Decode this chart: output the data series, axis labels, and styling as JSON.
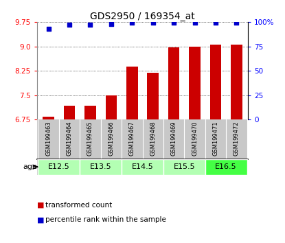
{
  "title": "GDS2950 / 169354_at",
  "samples": [
    "GSM199463",
    "GSM199464",
    "GSM199465",
    "GSM199466",
    "GSM199467",
    "GSM199468",
    "GSM199469",
    "GSM199470",
    "GSM199471",
    "GSM199472"
  ],
  "transformed_count": [
    6.85,
    7.18,
    7.19,
    7.5,
    8.37,
    8.2,
    8.97,
    9.0,
    9.06,
    9.06
  ],
  "percentile_rank": [
    93,
    97,
    97,
    98,
    99,
    99,
    99,
    99,
    99,
    99
  ],
  "age_groups": [
    {
      "label": "E12.5",
      "start": 0,
      "end": 2,
      "color": "#b3ffb3"
    },
    {
      "label": "E13.5",
      "start": 2,
      "end": 4,
      "color": "#b3ffb3"
    },
    {
      "label": "E14.5",
      "start": 4,
      "end": 6,
      "color": "#b3ffb3"
    },
    {
      "label": "E15.5",
      "start": 6,
      "end": 8,
      "color": "#b3ffb3"
    },
    {
      "label": "E16.5",
      "start": 8,
      "end": 10,
      "color": "#44ff44"
    }
  ],
  "ylim_left": [
    6.75,
    9.75
  ],
  "ylim_right": [
    0,
    100
  ],
  "yticks_left": [
    6.75,
    7.5,
    8.25,
    9.0,
    9.75
  ],
  "yticks_right": [
    0,
    25,
    50,
    75,
    100
  ],
  "bar_color": "#cc0000",
  "dot_color": "#0000cc",
  "background_color": "#ffffff",
  "bar_bottom": 6.75,
  "sample_bg": "#c8c8c8",
  "age_bg": "#c8c8c8"
}
